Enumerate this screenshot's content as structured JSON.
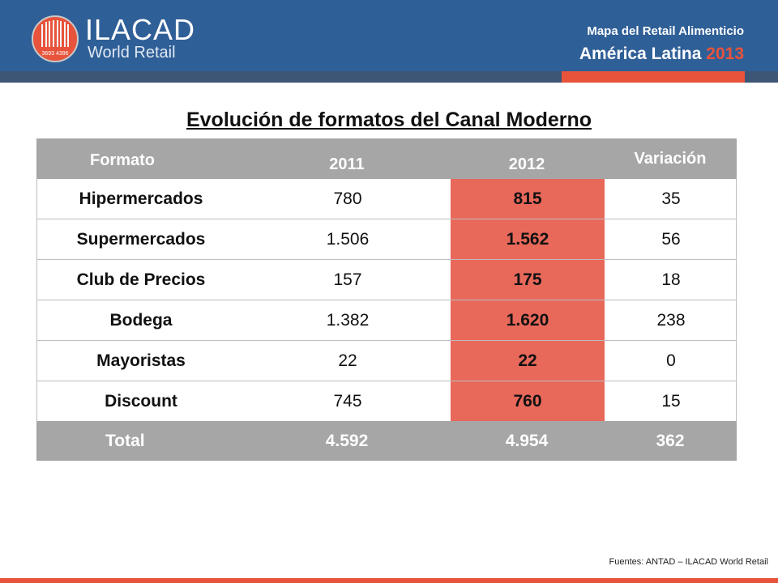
{
  "header": {
    "logo_name": "ILACAD",
    "logo_sub": "World Retail",
    "logo_badge": "3693 4396",
    "title": "Mapa del Retail Alimenticio",
    "subtitle_text": "América Latina",
    "subtitle_year": "2013"
  },
  "page_title": "Evolución de formatos del Canal Moderno",
  "table": {
    "columns": [
      "Formato",
      "2011",
      "2012",
      "Variación"
    ],
    "rows": [
      {
        "formato": "Hipermercados",
        "y2011": "780",
        "y2012": "815",
        "variacion": "35"
      },
      {
        "formato": "Supermercados",
        "y2011": "1.506",
        "y2012": "1.562",
        "variacion": "56"
      },
      {
        "formato": "Club de Precios",
        "y2011": "157",
        "y2012": "175",
        "variacion": "18"
      },
      {
        "formato": "Bodega",
        "y2011": "1.382",
        "y2012": "1.620",
        "variacion": "238"
      },
      {
        "formato": "Mayoristas",
        "y2011": "22",
        "y2012": "22",
        "variacion": "0"
      },
      {
        "formato": "Discount",
        "y2011": "745",
        "y2012": "760",
        "variacion": "15"
      }
    ],
    "total": {
      "formato": "Total",
      "y2011": "4.592",
      "y2012": "4.954",
      "variacion": "362"
    }
  },
  "source": "Fuentes: ANTAD – ILACAD World Retail",
  "colors": {
    "header_blue": "#2f5f97",
    "accent_red": "#e8533b",
    "highlight_cell": "#e8685a",
    "table_header_gray": "#a6a6a6"
  }
}
